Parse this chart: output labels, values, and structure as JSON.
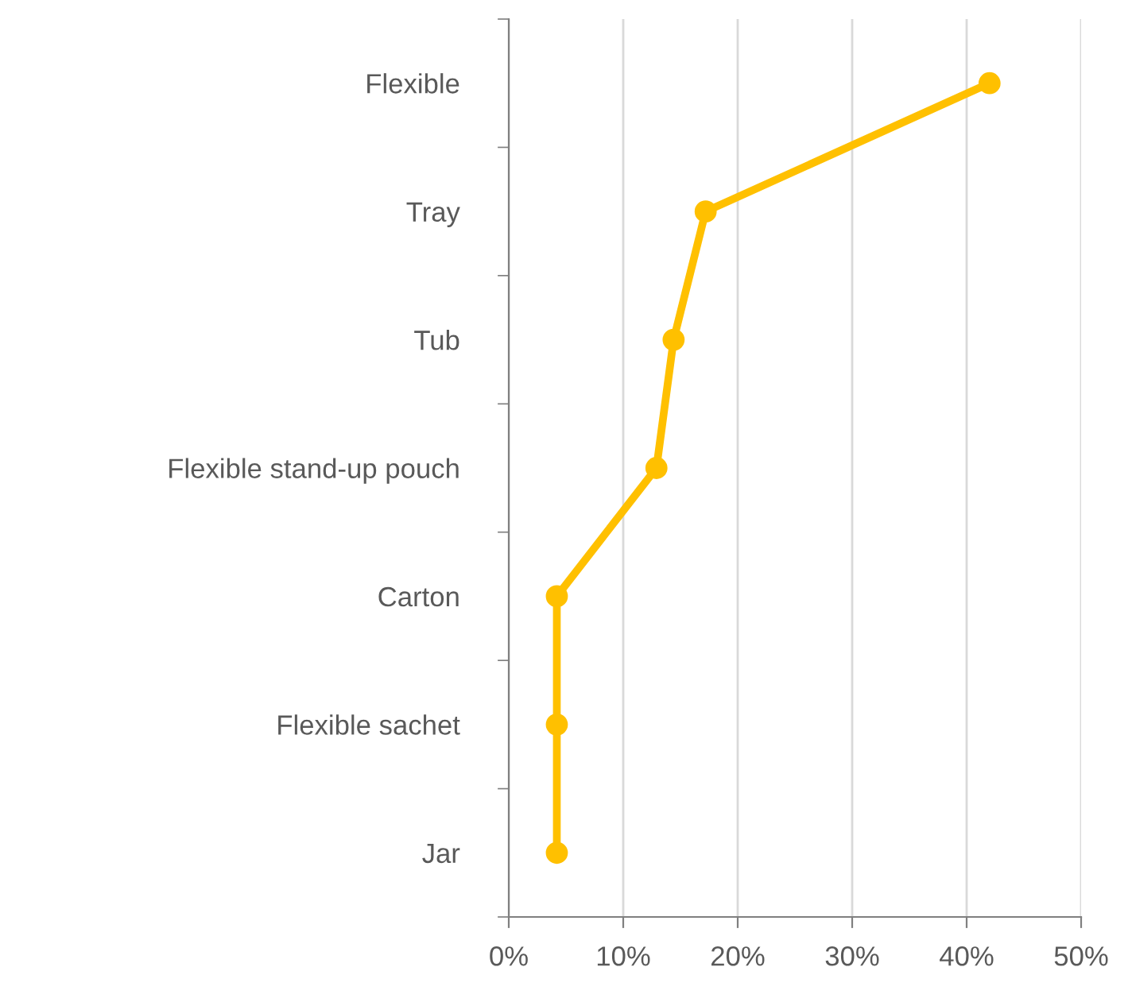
{
  "chart_data": {
    "type": "line",
    "orientation": "horizontal",
    "categories": [
      "Flexible",
      "Tray",
      "Tub",
      "Flexible stand-up pouch",
      "Carton",
      "Flexible sachet",
      "Jar"
    ],
    "series": [
      {
        "color": "#ffc000",
        "values": [
          42,
          17.2,
          14.4,
          12.9,
          4.2,
          4.2,
          4.2
        ]
      }
    ],
    "xlim": [
      0,
      50
    ],
    "xticks": [
      {
        "value": 0,
        "label": "0%"
      },
      {
        "value": 10,
        "label": "10%"
      },
      {
        "value": 20,
        "label": "20%"
      },
      {
        "value": 30,
        "label": "30%"
      },
      {
        "value": 40,
        "label": "40%"
      },
      {
        "value": 50,
        "label": "50%"
      }
    ],
    "grid": "x",
    "marker": "circle",
    "line_style": "solid",
    "legend": false
  }
}
